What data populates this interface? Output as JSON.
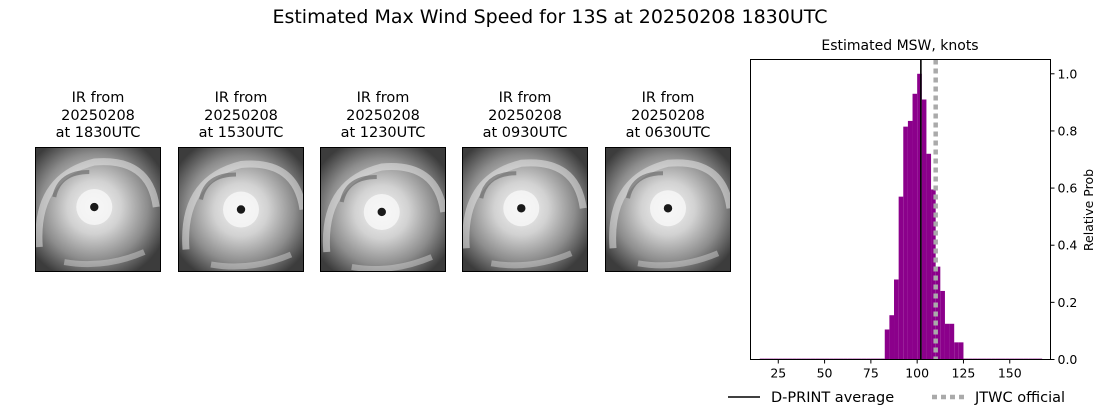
{
  "suptitle": "Estimated Max Wind Speed for 13S at 20250208 1830UTC",
  "ir_panels": [
    {
      "line1": "IR from",
      "line2": "20250208",
      "line3": "at 1830UTC"
    },
    {
      "line1": "IR from",
      "line2": "20250208",
      "line3": "at 1530UTC"
    },
    {
      "line1": "IR from",
      "line2": "20250208",
      "line3": "at 1230UTC"
    },
    {
      "line1": "IR from",
      "line2": "20250208",
      "line3": "at 0930UTC"
    },
    {
      "line1": "IR from",
      "line2": "20250208",
      "line3": "at 0630UTC"
    }
  ],
  "chart_data": {
    "type": "bar",
    "title": "Estimated MSW, knots",
    "xlabel": "",
    "ylabel": "Relative Prob",
    "xlim": [
      10,
      172
    ],
    "ylim": [
      0,
      1.05
    ],
    "xticks": [
      25,
      50,
      75,
      100,
      125,
      150
    ],
    "yticks": [
      0.0,
      0.2,
      0.4,
      0.6,
      0.8,
      1.0
    ],
    "bar_color": "#8b008b",
    "bin_width": 2.5,
    "bins": [
      {
        "x": 15.0,
        "y": 0.003
      },
      {
        "x": 17.5,
        "y": 0.003
      },
      {
        "x": 20.0,
        "y": 0.003
      },
      {
        "x": 22.5,
        "y": 0.003
      },
      {
        "x": 25.0,
        "y": 0.003
      },
      {
        "x": 27.5,
        "y": 0.003
      },
      {
        "x": 30.0,
        "y": 0.003
      },
      {
        "x": 32.5,
        "y": 0.003
      },
      {
        "x": 35.0,
        "y": 0.003
      },
      {
        "x": 37.5,
        "y": 0.003
      },
      {
        "x": 40.0,
        "y": 0.003
      },
      {
        "x": 42.5,
        "y": 0.003
      },
      {
        "x": 45.0,
        "y": 0.003
      },
      {
        "x": 47.5,
        "y": 0.003
      },
      {
        "x": 50.0,
        "y": 0.003
      },
      {
        "x": 52.5,
        "y": 0.003
      },
      {
        "x": 55.0,
        "y": 0.003
      },
      {
        "x": 57.5,
        "y": 0.003
      },
      {
        "x": 60.0,
        "y": 0.003
      },
      {
        "x": 62.5,
        "y": 0.003
      },
      {
        "x": 65.0,
        "y": 0.003
      },
      {
        "x": 67.5,
        "y": 0.003
      },
      {
        "x": 70.0,
        "y": 0.003
      },
      {
        "x": 72.5,
        "y": 0.003
      },
      {
        "x": 75.0,
        "y": 0.003
      },
      {
        "x": 77.5,
        "y": 0.003
      },
      {
        "x": 80.0,
        "y": 0.003
      },
      {
        "x": 82.5,
        "y": 0.105
      },
      {
        "x": 85.0,
        "y": 0.155
      },
      {
        "x": 87.5,
        "y": 0.28
      },
      {
        "x": 90.0,
        "y": 0.57
      },
      {
        "x": 92.5,
        "y": 0.815
      },
      {
        "x": 95.0,
        "y": 0.835
      },
      {
        "x": 97.5,
        "y": 0.93
      },
      {
        "x": 100.0,
        "y": 1.0
      },
      {
        "x": 102.5,
        "y": 0.91
      },
      {
        "x": 105.0,
        "y": 0.72
      },
      {
        "x": 107.5,
        "y": 0.595
      },
      {
        "x": 110.0,
        "y": 0.325
      },
      {
        "x": 112.5,
        "y": 0.24
      },
      {
        "x": 115.0,
        "y": 0.125
      },
      {
        "x": 117.5,
        "y": 0.125
      },
      {
        "x": 120.0,
        "y": 0.06
      },
      {
        "x": 122.5,
        "y": 0.06
      },
      {
        "x": 125.0,
        "y": 0.003
      },
      {
        "x": 127.5,
        "y": 0.003
      },
      {
        "x": 130.0,
        "y": 0.003
      },
      {
        "x": 132.5,
        "y": 0.003
      },
      {
        "x": 135.0,
        "y": 0.003
      },
      {
        "x": 137.5,
        "y": 0.003
      },
      {
        "x": 140.0,
        "y": 0.003
      },
      {
        "x": 142.5,
        "y": 0.003
      },
      {
        "x": 145.0,
        "y": 0.003
      },
      {
        "x": 147.5,
        "y": 0.003
      },
      {
        "x": 150.0,
        "y": 0.003
      },
      {
        "x": 152.5,
        "y": 0.003
      },
      {
        "x": 155.0,
        "y": 0.003
      },
      {
        "x": 157.5,
        "y": 0.003
      },
      {
        "x": 160.0,
        "y": 0.003
      },
      {
        "x": 162.5,
        "y": 0.003
      },
      {
        "x": 165.0,
        "y": 0.003
      }
    ],
    "dprint_average": 102,
    "jtwc_official": 110,
    "legend": [
      {
        "label": "D-PRINT average",
        "style": "solid",
        "color": "#000000"
      },
      {
        "label": "JTWC official",
        "style": "dotted",
        "color": "#aaaaaa"
      }
    ],
    "legend_placement": "bottom"
  }
}
